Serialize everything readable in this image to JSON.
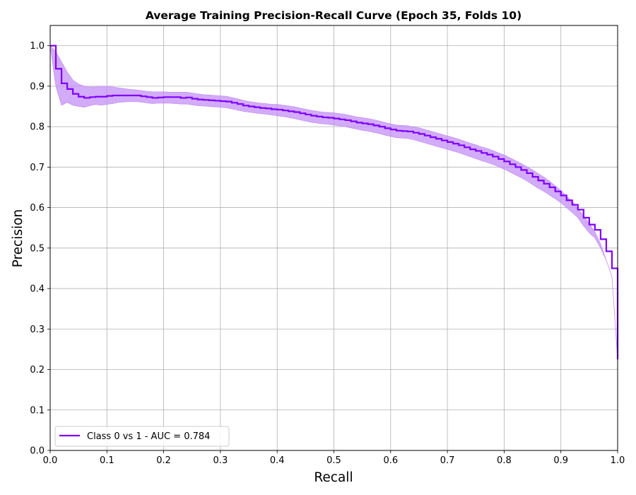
{
  "chart_data": {
    "type": "line",
    "title": "Average Training Precision-Recall Curve (Epoch 35, Folds 10)",
    "xlabel": "Recall",
    "ylabel": "Precision",
    "xlim": [
      0.0,
      1.0
    ],
    "ylim": [
      0.0,
      1.05
    ],
    "xticks": [
      "0.0",
      "0.1",
      "0.2",
      "0.3",
      "0.4",
      "0.5",
      "0.6",
      "0.7",
      "0.8",
      "0.9",
      "1.0"
    ],
    "yticks": [
      "0.0",
      "0.1",
      "0.2",
      "0.3",
      "0.4",
      "0.5",
      "0.6",
      "0.7",
      "0.8",
      "0.9",
      "1.0"
    ],
    "grid": true,
    "legend_position": "lower-left",
    "series": [
      {
        "name": "Class 0 vs 1  -  AUC = 0.784",
        "color": "#7f00ff",
        "band_color": "#c490f7",
        "step": true,
        "x": [
          0.0,
          0.01,
          0.02,
          0.03,
          0.04,
          0.05,
          0.06,
          0.07,
          0.08,
          0.09,
          0.1,
          0.11,
          0.12,
          0.13,
          0.14,
          0.15,
          0.16,
          0.17,
          0.18,
          0.19,
          0.2,
          0.21,
          0.22,
          0.23,
          0.24,
          0.25,
          0.26,
          0.27,
          0.28,
          0.29,
          0.3,
          0.31,
          0.32,
          0.33,
          0.34,
          0.35,
          0.36,
          0.37,
          0.38,
          0.39,
          0.4,
          0.41,
          0.42,
          0.43,
          0.44,
          0.45,
          0.46,
          0.47,
          0.48,
          0.49,
          0.5,
          0.51,
          0.52,
          0.53,
          0.54,
          0.55,
          0.56,
          0.57,
          0.58,
          0.59,
          0.6,
          0.61,
          0.62,
          0.63,
          0.64,
          0.65,
          0.66,
          0.67,
          0.68,
          0.69,
          0.7,
          0.71,
          0.72,
          0.73,
          0.74,
          0.75,
          0.76,
          0.77,
          0.78,
          0.79,
          0.8,
          0.81,
          0.82,
          0.83,
          0.84,
          0.85,
          0.86,
          0.87,
          0.88,
          0.89,
          0.9,
          0.91,
          0.92,
          0.93,
          0.94,
          0.95,
          0.96,
          0.97,
          0.98,
          0.99,
          1.0
        ],
        "y": [
          1.0,
          0.943,
          0.907,
          0.893,
          0.881,
          0.874,
          0.871,
          0.873,
          0.874,
          0.874,
          0.876,
          0.877,
          0.877,
          0.877,
          0.877,
          0.877,
          0.875,
          0.873,
          0.871,
          0.872,
          0.873,
          0.873,
          0.873,
          0.871,
          0.872,
          0.869,
          0.867,
          0.866,
          0.865,
          0.864,
          0.863,
          0.862,
          0.859,
          0.856,
          0.852,
          0.85,
          0.848,
          0.846,
          0.845,
          0.843,
          0.842,
          0.84,
          0.838,
          0.836,
          0.833,
          0.83,
          0.827,
          0.825,
          0.823,
          0.822,
          0.82,
          0.818,
          0.816,
          0.813,
          0.81,
          0.808,
          0.806,
          0.803,
          0.8,
          0.796,
          0.793,
          0.79,
          0.789,
          0.788,
          0.785,
          0.782,
          0.778,
          0.774,
          0.77,
          0.766,
          0.762,
          0.758,
          0.754,
          0.749,
          0.744,
          0.74,
          0.735,
          0.731,
          0.726,
          0.72,
          0.714,
          0.707,
          0.7,
          0.693,
          0.685,
          0.676,
          0.667,
          0.659,
          0.65,
          0.64,
          0.63,
          0.618,
          0.607,
          0.595,
          0.575,
          0.558,
          0.545,
          0.522,
          0.492,
          0.45,
          0.225
        ],
        "y_upper": [
          1.0,
          0.985,
          0.96,
          0.935,
          0.915,
          0.905,
          0.9,
          0.898,
          0.898,
          0.9,
          0.9,
          0.898,
          0.896,
          0.894,
          0.892,
          0.891,
          0.889,
          0.887,
          0.886,
          0.886,
          0.886,
          0.885,
          0.885,
          0.885,
          0.885,
          0.883,
          0.881,
          0.879,
          0.878,
          0.877,
          0.876,
          0.875,
          0.872,
          0.869,
          0.865,
          0.862,
          0.86,
          0.858,
          0.857,
          0.855,
          0.855,
          0.853,
          0.851,
          0.849,
          0.846,
          0.843,
          0.84,
          0.838,
          0.836,
          0.835,
          0.834,
          0.832,
          0.83,
          0.827,
          0.824,
          0.822,
          0.82,
          0.817,
          0.814,
          0.81,
          0.807,
          0.804,
          0.803,
          0.802,
          0.799,
          0.797,
          0.793,
          0.789,
          0.785,
          0.781,
          0.777,
          0.773,
          0.769,
          0.764,
          0.759,
          0.755,
          0.75,
          0.746,
          0.741,
          0.735,
          0.73,
          0.723,
          0.716,
          0.709,
          0.701,
          0.693,
          0.684,
          0.675,
          0.665,
          0.654,
          0.642,
          0.628,
          0.615,
          0.598,
          0.58,
          0.56,
          0.54,
          0.51,
          0.47,
          0.43,
          0.225
        ],
        "y_lower": [
          1.0,
          0.9,
          0.853,
          0.86,
          0.853,
          0.85,
          0.848,
          0.852,
          0.855,
          0.853,
          0.855,
          0.857,
          0.86,
          0.861,
          0.862,
          0.862,
          0.861,
          0.859,
          0.857,
          0.858,
          0.858,
          0.858,
          0.857,
          0.856,
          0.856,
          0.854,
          0.852,
          0.851,
          0.85,
          0.849,
          0.848,
          0.847,
          0.844,
          0.841,
          0.838,
          0.836,
          0.834,
          0.832,
          0.831,
          0.829,
          0.827,
          0.825,
          0.823,
          0.82,
          0.817,
          0.814,
          0.811,
          0.809,
          0.807,
          0.806,
          0.804,
          0.802,
          0.8,
          0.797,
          0.794,
          0.791,
          0.789,
          0.786,
          0.783,
          0.779,
          0.776,
          0.773,
          0.772,
          0.771,
          0.768,
          0.764,
          0.76,
          0.756,
          0.752,
          0.748,
          0.744,
          0.74,
          0.736,
          0.731,
          0.726,
          0.721,
          0.716,
          0.712,
          0.707,
          0.701,
          0.695,
          0.688,
          0.681,
          0.674,
          0.666,
          0.657,
          0.648,
          0.64,
          0.631,
          0.622,
          0.612,
          0.6,
          0.588,
          0.575,
          0.555,
          0.538,
          0.525,
          0.5,
          0.47,
          0.43,
          0.225
        ]
      }
    ]
  }
}
